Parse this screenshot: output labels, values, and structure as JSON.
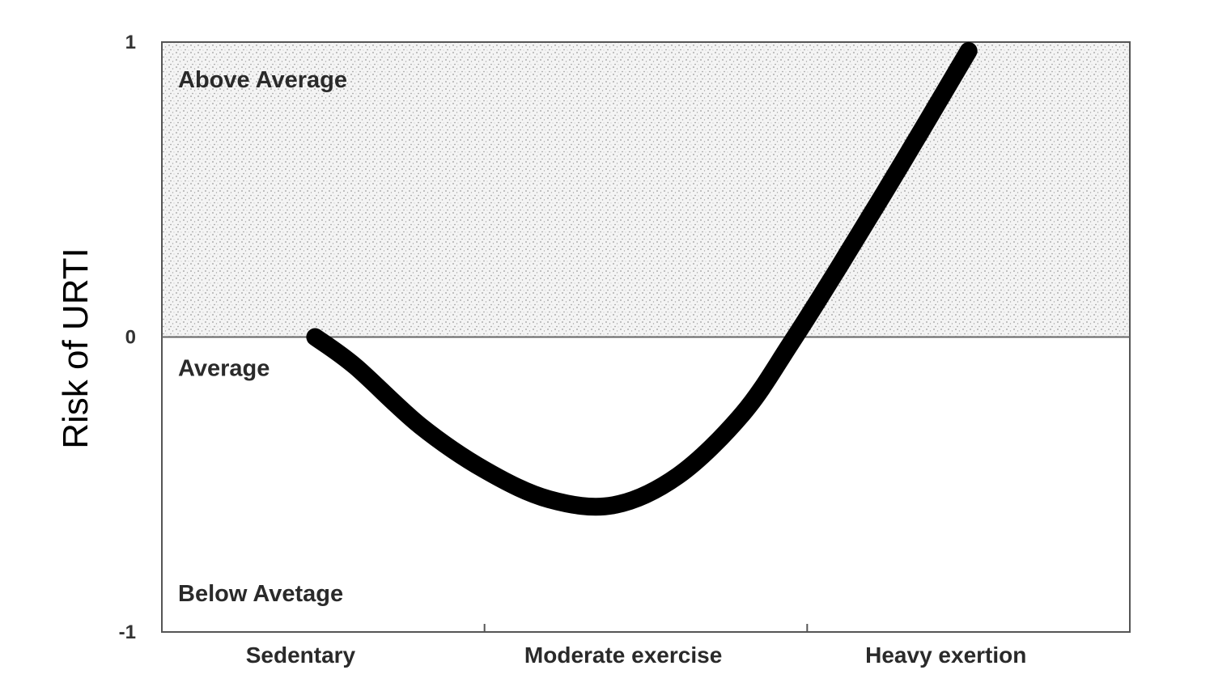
{
  "chart_data": {
    "type": "line",
    "ylabel": "Risk of URTI",
    "xlabel": "",
    "categories": [
      "Sedentary",
      "Moderate exercise",
      "Heavy exertion"
    ],
    "yticks": [
      {
        "value": 1,
        "label": "1"
      },
      {
        "value": 0,
        "label": "0"
      },
      {
        "value": -1,
        "label": "-1"
      }
    ],
    "ylim": [
      -1,
      1
    ],
    "xlim": [
      0,
      3
    ],
    "regions": {
      "above": "Above Average",
      "average": "Average",
      "below": "Below Avetage"
    },
    "shaded_region": "above",
    "grid": false,
    "series": [
      {
        "x": [
          0.475,
          0.6,
          0.8,
          1.0,
          1.2,
          1.4,
          1.6,
          1.8,
          1.95,
          2.1,
          2.3,
          2.5
        ],
        "y": [
          0.0,
          -0.1,
          -0.3,
          -0.45,
          -0.55,
          -0.57,
          -0.47,
          -0.26,
          -0.02,
          0.24,
          0.6,
          0.97
        ]
      }
    ],
    "colors": {
      "line": "#000000",
      "axis": "#555555",
      "shading": "#f2f2f2"
    }
  }
}
